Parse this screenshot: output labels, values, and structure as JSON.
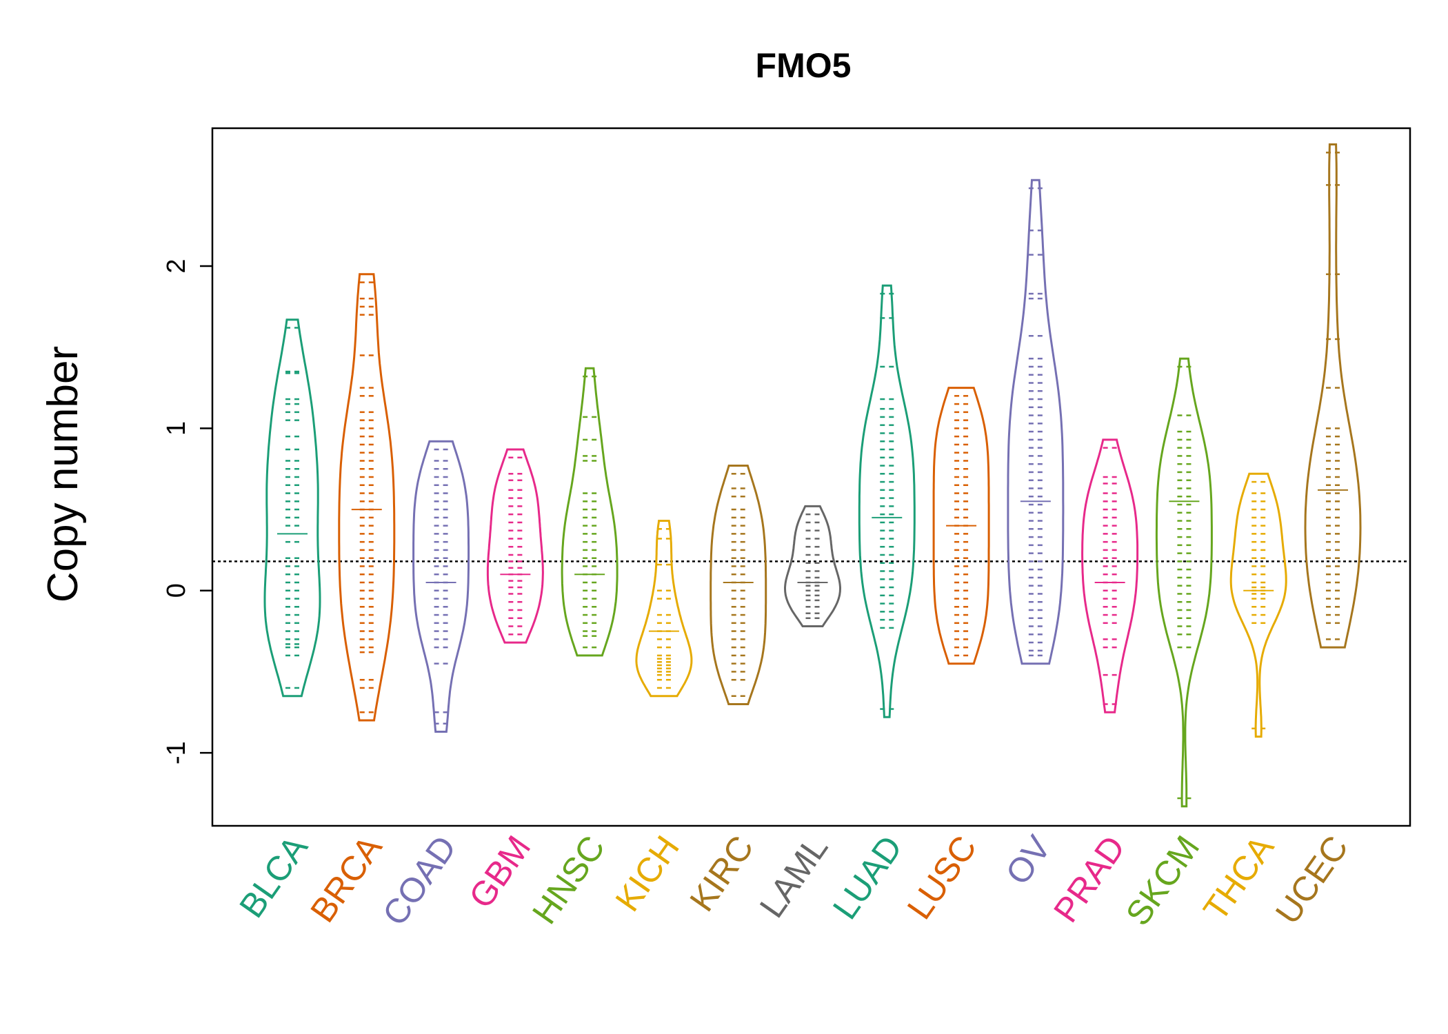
{
  "chart_data": {
    "type": "beanplot",
    "title": "FMO5",
    "xlabel": "",
    "ylabel": "Copy number",
    "ylim": [
      -1.45,
      2.85
    ],
    "yticks": [
      -1,
      0,
      1,
      2
    ],
    "reference_line": 0.18,
    "categories": [
      "BLCA",
      "BRCA",
      "COAD",
      "GBM",
      "HNSC",
      "KICH",
      "KIRC",
      "LAML",
      "LUAD",
      "LUSC",
      "OV",
      "PRAD",
      "SKCM",
      "THCA",
      "UCEC"
    ],
    "colors": [
      "#1b9e77",
      "#d95f02",
      "#7570b3",
      "#e7298a",
      "#66a61e",
      "#e6ab02",
      "#a6761d",
      "#666666",
      "#1b9e77",
      "#d95f02",
      "#7570b3",
      "#e7298a",
      "#66a61e",
      "#e6ab02",
      "#a6761d"
    ],
    "series": [
      {
        "name": "BLCA",
        "mean": 0.35,
        "points": [
          1.62,
          1.35,
          1.34,
          1.18,
          1.15,
          1.1,
          1.05,
          0.95,
          0.87,
          0.8,
          0.75,
          0.7,
          0.65,
          0.6,
          0.55,
          0.5,
          0.45,
          0.4,
          0.3,
          0.2,
          0.15,
          0.1,
          0.05,
          0.0,
          -0.05,
          -0.1,
          -0.15,
          -0.2,
          -0.25,
          -0.3,
          -0.33,
          -0.35,
          -0.4,
          -0.6
        ]
      },
      {
        "name": "BRCA",
        "mean": 0.5,
        "points": [
          1.9,
          1.8,
          1.75,
          1.7,
          1.45,
          1.25,
          1.2,
          1.1,
          1.05,
          1.0,
          0.95,
          0.9,
          0.85,
          0.8,
          0.75,
          0.7,
          0.65,
          0.6,
          0.55,
          0.5,
          0.45,
          0.4,
          0.35,
          0.3,
          0.25,
          0.2,
          0.15,
          0.1,
          0.05,
          0.0,
          -0.05,
          -0.1,
          -0.15,
          -0.2,
          -0.25,
          -0.3,
          -0.35,
          -0.38,
          -0.55,
          -0.6,
          -0.75
        ]
      },
      {
        "name": "COAD",
        "mean": 0.05,
        "points": [
          0.87,
          0.8,
          0.75,
          0.7,
          0.65,
          0.6,
          0.55,
          0.5,
          0.45,
          0.4,
          0.35,
          0.3,
          0.25,
          0.2,
          0.15,
          0.1,
          0.05,
          0.0,
          -0.05,
          -0.1,
          -0.15,
          -0.2,
          -0.25,
          -0.3,
          -0.35,
          -0.45,
          -0.75,
          -0.82
        ]
      },
      {
        "name": "GBM",
        "mean": 0.1,
        "points": [
          0.82,
          0.72,
          0.68,
          0.62,
          0.57,
          0.52,
          0.47,
          0.42,
          0.37,
          0.32,
          0.27,
          0.22,
          0.18,
          0.14,
          0.1,
          0.06,
          0.02,
          -0.02,
          -0.07,
          -0.12,
          -0.17,
          -0.22,
          -0.27
        ]
      },
      {
        "name": "HNSC",
        "mean": 0.1,
        "points": [
          1.32,
          1.07,
          0.93,
          0.83,
          0.8,
          0.6,
          0.55,
          0.5,
          0.45,
          0.4,
          0.35,
          0.3,
          0.25,
          0.2,
          0.15,
          0.1,
          0.05,
          0.0,
          -0.05,
          -0.1,
          -0.15,
          -0.2,
          -0.25,
          -0.28,
          -0.35
        ]
      },
      {
        "name": "KICH",
        "mean": -0.25,
        "points": [
          0.38,
          0.32,
          0.16,
          0.0,
          -0.05,
          -0.15,
          -0.2,
          -0.25,
          -0.3,
          -0.35,
          -0.4,
          -0.42,
          -0.44,
          -0.46,
          -0.48,
          -0.5,
          -0.52,
          -0.55,
          -0.6
        ]
      },
      {
        "name": "KIRC",
        "mean": 0.05,
        "points": [
          0.72,
          0.63,
          0.58,
          0.5,
          0.45,
          0.4,
          0.35,
          0.3,
          0.25,
          0.2,
          0.15,
          0.1,
          0.05,
          0.0,
          -0.05,
          -0.1,
          -0.15,
          -0.2,
          -0.25,
          -0.3,
          -0.35,
          -0.4,
          -0.45,
          -0.5,
          -0.55,
          -0.65
        ]
      },
      {
        "name": "LAML",
        "mean": 0.05,
        "points": [
          0.47,
          0.42,
          0.37,
          0.32,
          0.27,
          0.22,
          0.17,
          0.12,
          0.08,
          0.05,
          0.03,
          0.0,
          -0.03,
          -0.06,
          -0.1,
          -0.14,
          -0.17
        ]
      },
      {
        "name": "LUAD",
        "mean": 0.45,
        "points": [
          1.83,
          1.68,
          1.38,
          1.18,
          1.12,
          1.07,
          1.02,
          0.97,
          0.92,
          0.87,
          0.82,
          0.77,
          0.72,
          0.67,
          0.62,
          0.57,
          0.52,
          0.47,
          0.42,
          0.37,
          0.32,
          0.27,
          0.22,
          0.17,
          0.12,
          0.07,
          0.02,
          -0.03,
          -0.08,
          -0.13,
          -0.18,
          -0.23,
          -0.73
        ]
      },
      {
        "name": "LUSC",
        "mean": 0.4,
        "points": [
          1.2,
          1.15,
          1.1,
          1.05,
          1.0,
          0.95,
          0.9,
          0.85,
          0.8,
          0.75,
          0.7,
          0.65,
          0.6,
          0.55,
          0.5,
          0.45,
          0.4,
          0.35,
          0.3,
          0.25,
          0.2,
          0.15,
          0.1,
          0.05,
          0.0,
          -0.05,
          -0.1,
          -0.15,
          -0.2,
          -0.25,
          -0.3,
          -0.35,
          -0.4
        ]
      },
      {
        "name": "OV",
        "mean": 0.55,
        "points": [
          2.48,
          2.22,
          2.07,
          1.83,
          1.8,
          1.57,
          1.43,
          1.38,
          1.33,
          1.28,
          1.23,
          1.18,
          1.13,
          1.08,
          1.03,
          0.98,
          0.93,
          0.88,
          0.83,
          0.78,
          0.73,
          0.68,
          0.63,
          0.58,
          0.53,
          0.48,
          0.43,
          0.38,
          0.33,
          0.28,
          0.23,
          0.18,
          0.13,
          0.08,
          0.03,
          -0.02,
          -0.07,
          -0.12,
          -0.17,
          -0.22,
          -0.27,
          -0.32,
          -0.37,
          -0.4
        ]
      },
      {
        "name": "PRAD",
        "mean": 0.05,
        "points": [
          0.88,
          0.7,
          0.66,
          0.6,
          0.55,
          0.5,
          0.45,
          0.4,
          0.35,
          0.3,
          0.25,
          0.2,
          0.15,
          0.1,
          0.05,
          0.0,
          -0.05,
          -0.1,
          -0.15,
          -0.2,
          -0.3,
          -0.35,
          -0.52,
          -0.7
        ]
      },
      {
        "name": "SKCM",
        "mean": 0.55,
        "points": [
          1.38,
          1.08,
          0.98,
          0.93,
          0.88,
          0.83,
          0.78,
          0.73,
          0.68,
          0.63,
          0.58,
          0.53,
          0.48,
          0.43,
          0.38,
          0.33,
          0.28,
          0.23,
          0.18,
          0.13,
          0.08,
          0.03,
          -0.02,
          -0.07,
          -0.12,
          -0.17,
          -0.22,
          -0.27,
          -0.35,
          -1.28
        ]
      },
      {
        "name": "THCA",
        "mean": 0.0,
        "points": [
          0.67,
          0.6,
          0.55,
          0.5,
          0.45,
          0.4,
          0.35,
          0.3,
          0.25,
          0.2,
          0.15,
          0.1,
          0.05,
          0.02,
          0.0,
          -0.02,
          -0.05,
          -0.1,
          -0.15,
          -0.2,
          -0.85
        ]
      },
      {
        "name": "UCEC",
        "mean": 0.62,
        "points": [
          2.7,
          2.5,
          1.95,
          1.55,
          1.25,
          1.0,
          0.95,
          0.9,
          0.85,
          0.8,
          0.75,
          0.7,
          0.65,
          0.6,
          0.55,
          0.5,
          0.45,
          0.4,
          0.35,
          0.3,
          0.25,
          0.2,
          0.15,
          0.1,
          0.05,
          0.0,
          -0.05,
          -0.1,
          -0.15,
          -0.2,
          -0.3
        ]
      }
    ]
  }
}
